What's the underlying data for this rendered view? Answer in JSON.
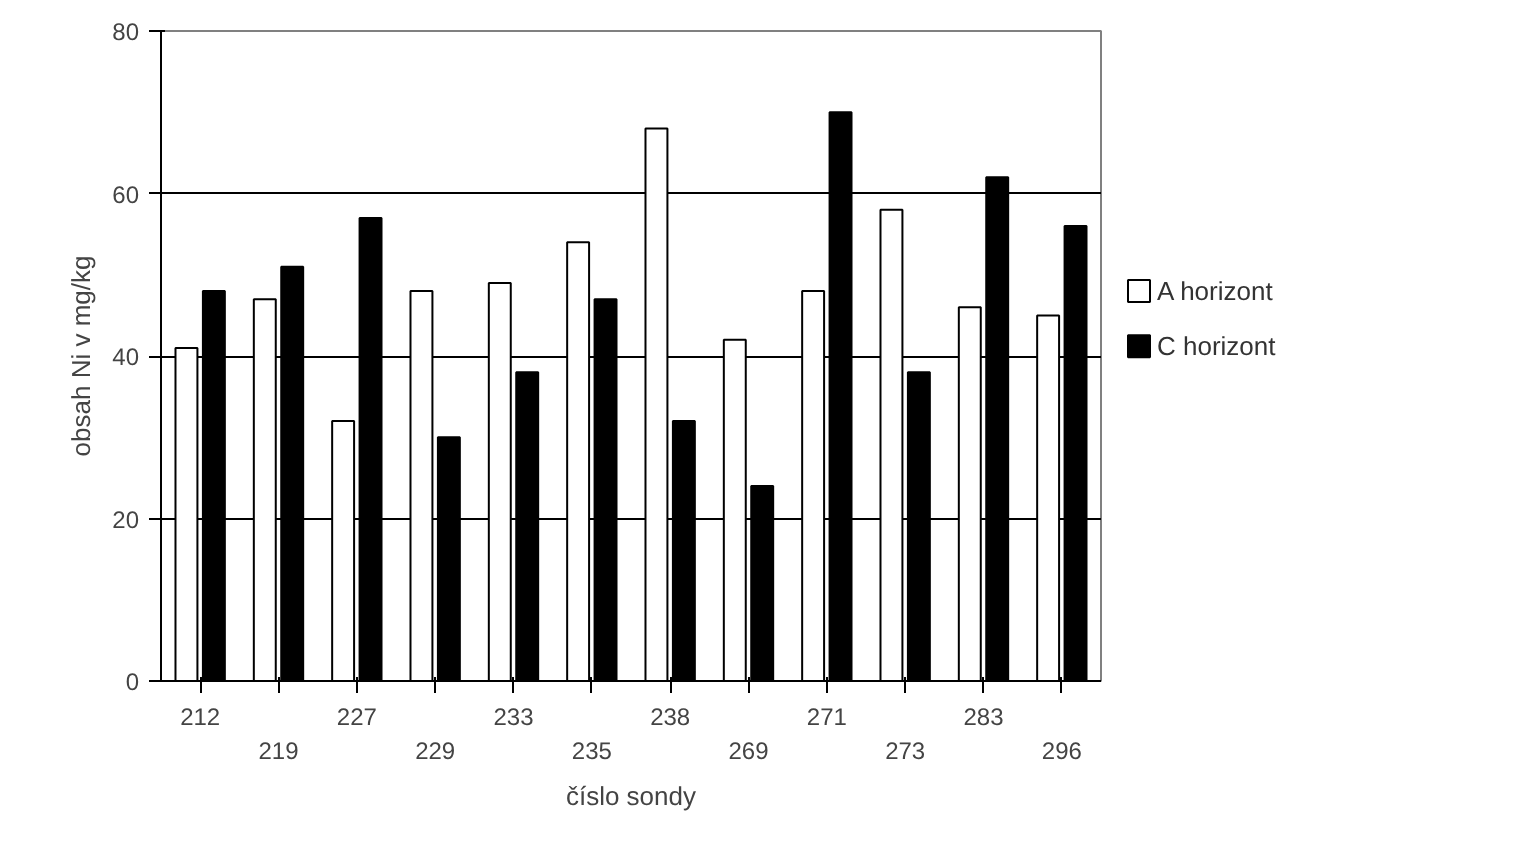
{
  "chart_data": {
    "type": "bar",
    "xlabel": "číslo sondy",
    "ylabel": "obsah Ni v mg/kg",
    "categories": [
      "212",
      "219",
      "227",
      "229",
      "233",
      "235",
      "238",
      "269",
      "271",
      "273",
      "283",
      "296"
    ],
    "series": [
      {
        "name": "A horizont",
        "color": "#ffffff",
        "values": [
          41,
          47,
          32,
          48,
          49,
          54,
          68,
          42,
          48,
          58,
          46,
          45
        ]
      },
      {
        "name": "C horizont",
        "color": "#000000",
        "values": [
          48,
          51,
          57,
          30,
          38,
          47,
          32,
          24,
          70,
          38,
          62,
          56
        ]
      }
    ],
    "ylim": [
      0,
      80
    ],
    "yticks": [
      0,
      20,
      40,
      60,
      80
    ],
    "grid": "y",
    "legend": "right"
  }
}
